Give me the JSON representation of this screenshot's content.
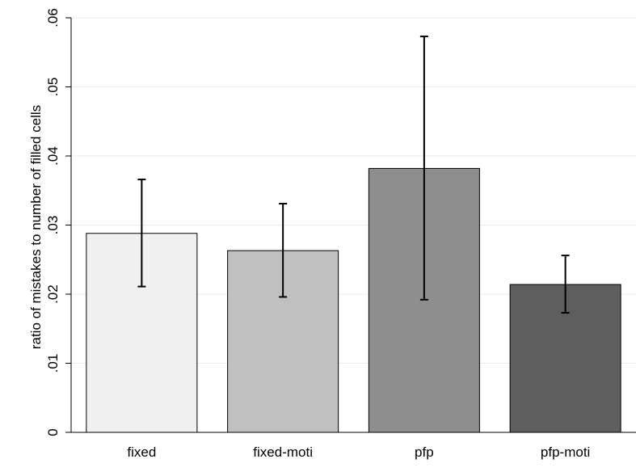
{
  "chart_data": {
    "type": "bar",
    "title": "",
    "xlabel": "",
    "ylabel": "ratio of mistakes to number of filled cells",
    "ylim": [
      0,
      0.06
    ],
    "yticks": [
      0,
      0.01,
      0.02,
      0.03,
      0.04,
      0.05,
      0.06
    ],
    "ytick_labels": [
      "0",
      ".01",
      ".02",
      ".03",
      ".04",
      ".05",
      ".06"
    ],
    "grid": true,
    "categories": [
      "fixed",
      "fixed-moti",
      "pfp",
      "pfp-moti"
    ],
    "values": [
      0.0288,
      0.0263,
      0.0382,
      0.0214
    ],
    "error_low": [
      0.0211,
      0.0196,
      0.0192,
      0.0173
    ],
    "error_high": [
      0.0366,
      0.0331,
      0.0573,
      0.0256
    ],
    "colors": [
      "#f0f0f0",
      "#c0c0c0",
      "#8e8e8e",
      "#5e5e5e"
    ]
  }
}
